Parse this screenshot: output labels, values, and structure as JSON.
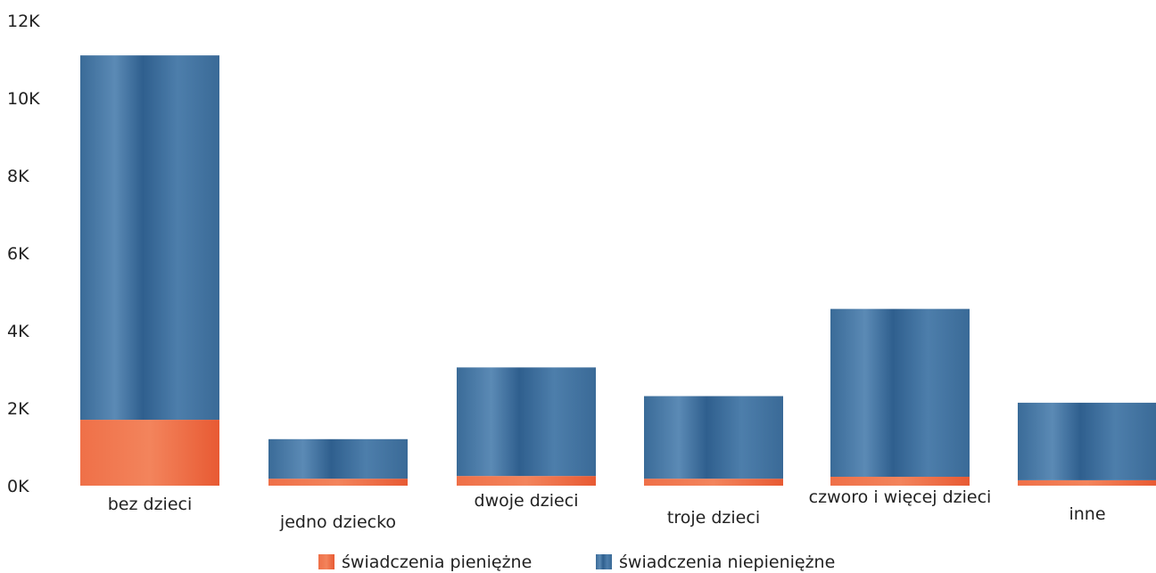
{
  "chart_data": {
    "type": "bar",
    "stacked": true,
    "categories": [
      "bez dzieci",
      "jedno dziecko",
      "dwoje dzieci",
      "troje dzieci",
      "czworo i więcej dzieci",
      "inne"
    ],
    "series": [
      {
        "name": "świadczenia pieniężne",
        "color": "#e8603a",
        "values": [
          1700,
          180,
          250,
          180,
          230,
          140
        ]
      },
      {
        "name": "świadczenia niepieniężne",
        "color": "#3f6f9c",
        "values": [
          9400,
          1020,
          2800,
          2130,
          4330,
          2000
        ]
      }
    ],
    "y_ticks": [
      "0K",
      "2K",
      "4K",
      "6K",
      "8K",
      "10K",
      "12K"
    ],
    "ylim": [
      0,
      12000
    ],
    "grid": false,
    "legend_position": "bottom"
  }
}
